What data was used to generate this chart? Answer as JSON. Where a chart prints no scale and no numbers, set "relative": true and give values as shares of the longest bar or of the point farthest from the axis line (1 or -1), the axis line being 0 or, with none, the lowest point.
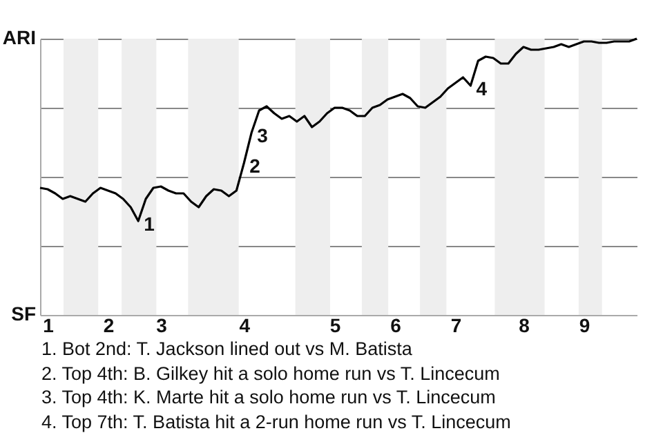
{
  "chart_data": {
    "type": "line",
    "categories": [
      null,
      "1",
      null,
      null,
      null,
      null,
      null,
      null,
      null,
      "2",
      null,
      null,
      null,
      null,
      null,
      null,
      "3",
      null,
      null,
      null,
      null,
      null,
      null,
      null,
      null,
      null,
      null,
      "4",
      null,
      null,
      null,
      null,
      null,
      null,
      null,
      null,
      null,
      null,
      null,
      "5",
      null,
      null,
      null,
      null,
      null,
      null,
      null,
      "6",
      null,
      null,
      null,
      null,
      null,
      null,
      null,
      "7",
      null,
      null,
      null,
      null,
      null,
      null,
      null,
      null,
      "8",
      null,
      null,
      null,
      null,
      null,
      null,
      null,
      "9",
      null,
      null,
      null,
      null,
      null,
      null,
      null
    ],
    "series": [
      {
        "color": "#000000",
        "values": [
          0.46,
          0.455,
          0.44,
          0.42,
          0.43,
          0.42,
          0.41,
          0.44,
          0.46,
          0.45,
          0.44,
          0.42,
          0.39,
          0.34,
          0.42,
          0.46,
          0.465,
          0.45,
          0.44,
          0.44,
          0.41,
          0.39,
          0.43,
          0.455,
          0.45,
          0.43,
          0.45,
          0.55,
          0.66,
          0.74,
          0.755,
          0.73,
          0.71,
          0.72,
          0.7,
          0.72,
          0.68,
          0.7,
          0.73,
          0.75,
          0.75,
          0.74,
          0.72,
          0.72,
          0.75,
          0.76,
          0.78,
          0.79,
          0.8,
          0.785,
          0.755,
          0.75,
          0.77,
          0.79,
          0.82,
          0.84,
          0.86,
          0.83,
          0.92,
          0.935,
          0.93,
          0.91,
          0.91,
          0.945,
          0.97,
          0.96,
          0.96,
          0.965,
          0.97,
          0.98,
          0.97,
          0.98,
          0.99,
          0.99,
          0.985,
          0.985,
          0.99,
          0.99,
          0.99,
          1
        ]
      }
    ],
    "relative": true,
    "grid": "y",
    "annotations": [
      "ARI",
      "SF",
      "1",
      "2",
      "3",
      "4",
      "1. Bot 2nd: T. Jackson lined out vs M. Batista",
      "2. Top 4th: B. Gilkey hit a solo home run vs T. Lincecum",
      "3. Top 4th: K. Marte hit a solo home run vs T. Lincecum",
      "4. Top 7th: T. Batista hit a 2-run home run vs T. Lincecum"
    ]
  }
}
